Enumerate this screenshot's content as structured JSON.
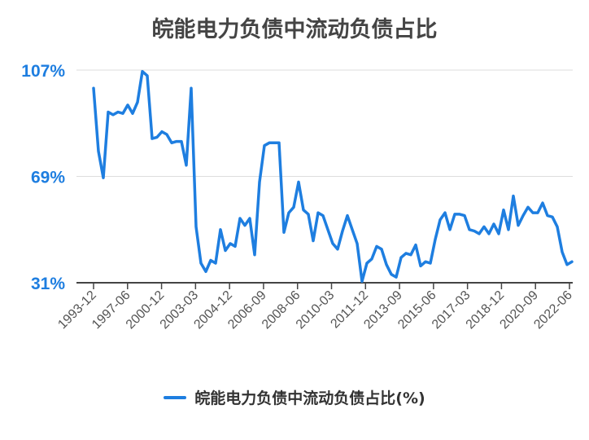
{
  "chart_data": {
    "type": "line",
    "title": "皖能电力负债中流动负债占比",
    "ylabel": "",
    "xlabel": "",
    "ylim": [
      31,
      107
    ],
    "y_ticks": [
      "107%",
      "69%",
      "31%"
    ],
    "y_tick_values": [
      107,
      69,
      31
    ],
    "grid": "horizontal",
    "legend_position": "bottom",
    "line_color": "#1e7ee0",
    "x_tick_labels": [
      "1993-12",
      "1997-06",
      "2000-12",
      "2003-03",
      "2004-12",
      "2006-09",
      "2008-06",
      "2010-03",
      "2011-12",
      "2013-09",
      "2015-06",
      "2017-03",
      "2018-12",
      "2020-09",
      "2022-06"
    ],
    "series": [
      {
        "name": "皖能电力负债中流动负债占比(%)",
        "values": [
          100.5,
          78,
          68.5,
          92,
          91,
          92,
          91.5,
          94.5,
          91.5,
          95.5,
          106.5,
          105,
          82.5,
          83,
          85,
          84,
          81,
          81.5,
          81.5,
          73,
          100.5,
          51,
          38,
          35,
          39,
          38,
          50,
          42.5,
          45,
          44,
          54,
          51.5,
          54,
          41,
          67,
          80,
          81,
          81,
          81,
          49,
          56,
          58,
          67,
          57,
          55.5,
          46,
          56,
          55,
          50,
          45,
          43,
          49.5,
          55,
          50,
          45,
          31.5,
          38,
          39.5,
          44,
          43,
          37.5,
          34,
          33,
          40,
          41.5,
          41,
          44.5,
          37,
          38.5,
          38,
          46.5,
          53.5,
          56,
          50,
          55.5,
          55.5,
          55,
          50,
          49.5,
          48.5,
          51,
          48.5,
          52,
          48.5,
          57,
          50,
          62,
          51.5,
          55,
          58,
          56,
          56,
          59.5,
          55,
          54.5,
          51,
          42,
          37.5,
          38.5
        ]
      }
    ]
  }
}
